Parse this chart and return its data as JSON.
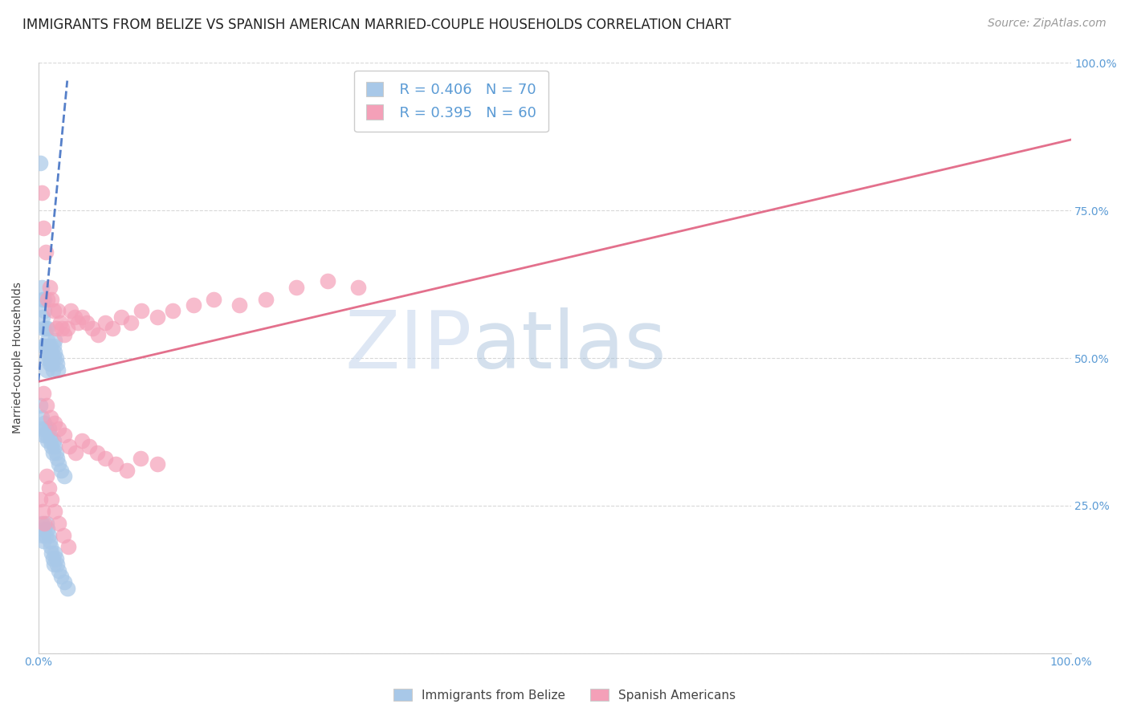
{
  "title": "IMMIGRANTS FROM BELIZE VS SPANISH AMERICAN MARRIED-COUPLE HOUSEHOLDS CORRELATION CHART",
  "source": "Source: ZipAtlas.com",
  "ylabel": "Married-couple Households",
  "legend_blue_r": "R = 0.406",
  "legend_blue_n": "N = 70",
  "legend_pink_r": "R = 0.395",
  "legend_pink_n": "N = 60",
  "legend_label_blue": "Immigrants from Belize",
  "legend_label_pink": "Spanish Americans",
  "xlim": [
    0.0,
    1.0
  ],
  "ylim": [
    0.0,
    1.0
  ],
  "blue_color": "#a8c8e8",
  "blue_line_color": "#4472c4",
  "pink_color": "#f4a0b8",
  "pink_line_color": "#e06080",
  "grid_color": "#d8d8d8",
  "background_color": "#ffffff",
  "blue_scatter_x": [
    0.002,
    0.003,
    0.004,
    0.004,
    0.005,
    0.005,
    0.006,
    0.006,
    0.007,
    0.007,
    0.008,
    0.008,
    0.009,
    0.009,
    0.01,
    0.01,
    0.011,
    0.011,
    0.012,
    0.012,
    0.013,
    0.013,
    0.014,
    0.015,
    0.015,
    0.016,
    0.016,
    0.017,
    0.018,
    0.019,
    0.002,
    0.003,
    0.004,
    0.005,
    0.006,
    0.007,
    0.008,
    0.009,
    0.01,
    0.011,
    0.012,
    0.013,
    0.014,
    0.015,
    0.016,
    0.017,
    0.018,
    0.02,
    0.022,
    0.025,
    0.003,
    0.004,
    0.005,
    0.006,
    0.007,
    0.008,
    0.009,
    0.01,
    0.011,
    0.012,
    0.013,
    0.014,
    0.015,
    0.016,
    0.017,
    0.018,
    0.02,
    0.022,
    0.025,
    0.028
  ],
  "blue_scatter_y": [
    0.83,
    0.62,
    0.6,
    0.57,
    0.55,
    0.52,
    0.6,
    0.58,
    0.55,
    0.52,
    0.5,
    0.48,
    0.55,
    0.53,
    0.52,
    0.5,
    0.51,
    0.49,
    0.52,
    0.5,
    0.51,
    0.49,
    0.48,
    0.52,
    0.5,
    0.53,
    0.51,
    0.5,
    0.49,
    0.48,
    0.42,
    0.4,
    0.38,
    0.37,
    0.39,
    0.38,
    0.37,
    0.36,
    0.38,
    0.37,
    0.36,
    0.35,
    0.34,
    0.36,
    0.35,
    0.34,
    0.33,
    0.32,
    0.31,
    0.3,
    0.22,
    0.2,
    0.19,
    0.21,
    0.2,
    0.22,
    0.21,
    0.2,
    0.19,
    0.18,
    0.17,
    0.16,
    0.15,
    0.17,
    0.16,
    0.15,
    0.14,
    0.13,
    0.12,
    0.11
  ],
  "pink_scatter_x": [
    0.003,
    0.005,
    0.007,
    0.009,
    0.011,
    0.013,
    0.015,
    0.017,
    0.019,
    0.021,
    0.023,
    0.025,
    0.028,
    0.031,
    0.035,
    0.038,
    0.042,
    0.047,
    0.052,
    0.058,
    0.065,
    0.072,
    0.08,
    0.09,
    0.1,
    0.115,
    0.13,
    0.15,
    0.17,
    0.195,
    0.22,
    0.25,
    0.28,
    0.31,
    0.005,
    0.008,
    0.012,
    0.016,
    0.02,
    0.025,
    0.03,
    0.036,
    0.042,
    0.049,
    0.057,
    0.065,
    0.075,
    0.086,
    0.099,
    0.115,
    0.002,
    0.004,
    0.006,
    0.008,
    0.01,
    0.013,
    0.016,
    0.02,
    0.024,
    0.029
  ],
  "pink_scatter_y": [
    0.78,
    0.72,
    0.68,
    0.6,
    0.62,
    0.6,
    0.58,
    0.55,
    0.58,
    0.56,
    0.55,
    0.54,
    0.55,
    0.58,
    0.57,
    0.56,
    0.57,
    0.56,
    0.55,
    0.54,
    0.56,
    0.55,
    0.57,
    0.56,
    0.58,
    0.57,
    0.58,
    0.59,
    0.6,
    0.59,
    0.6,
    0.62,
    0.63,
    0.62,
    0.44,
    0.42,
    0.4,
    0.39,
    0.38,
    0.37,
    0.35,
    0.34,
    0.36,
    0.35,
    0.34,
    0.33,
    0.32,
    0.31,
    0.33,
    0.32,
    0.26,
    0.24,
    0.22,
    0.3,
    0.28,
    0.26,
    0.24,
    0.22,
    0.2,
    0.18
  ],
  "pink_line_x0": 0.0,
  "pink_line_y0": 0.46,
  "pink_line_x1": 1.0,
  "pink_line_y1": 0.87,
  "blue_line_x0": 0.0,
  "blue_line_y0": 0.46,
  "blue_line_x1": 0.028,
  "blue_line_y1": 0.97,
  "title_fontsize": 12,
  "axis_label_fontsize": 10,
  "tick_fontsize": 10,
  "source_fontsize": 10,
  "legend_fontsize": 13
}
